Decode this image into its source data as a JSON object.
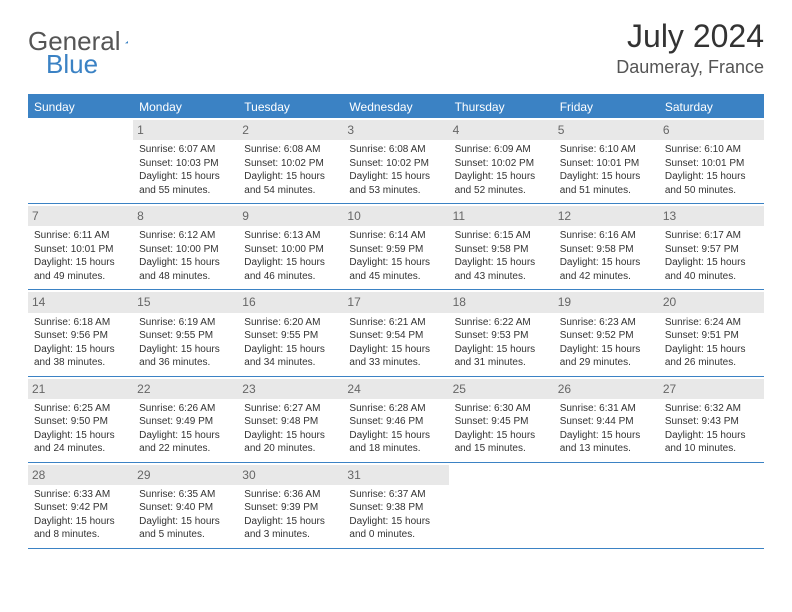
{
  "logo": {
    "word1": "General",
    "word2": "Blue"
  },
  "title": "July 2024",
  "location": "Daumeray, France",
  "accent_color": "#3b82c4",
  "daynum_bg": "#e8e8e8",
  "days_of_week": [
    "Sunday",
    "Monday",
    "Tuesday",
    "Wednesday",
    "Thursday",
    "Friday",
    "Saturday"
  ],
  "weeks": [
    [
      {
        "n": "",
        "sr": "",
        "ss": "",
        "dl": ""
      },
      {
        "n": "1",
        "sr": "Sunrise: 6:07 AM",
        "ss": "Sunset: 10:03 PM",
        "dl": "Daylight: 15 hours and 55 minutes."
      },
      {
        "n": "2",
        "sr": "Sunrise: 6:08 AM",
        "ss": "Sunset: 10:02 PM",
        "dl": "Daylight: 15 hours and 54 minutes."
      },
      {
        "n": "3",
        "sr": "Sunrise: 6:08 AM",
        "ss": "Sunset: 10:02 PM",
        "dl": "Daylight: 15 hours and 53 minutes."
      },
      {
        "n": "4",
        "sr": "Sunrise: 6:09 AM",
        "ss": "Sunset: 10:02 PM",
        "dl": "Daylight: 15 hours and 52 minutes."
      },
      {
        "n": "5",
        "sr": "Sunrise: 6:10 AM",
        "ss": "Sunset: 10:01 PM",
        "dl": "Daylight: 15 hours and 51 minutes."
      },
      {
        "n": "6",
        "sr": "Sunrise: 6:10 AM",
        "ss": "Sunset: 10:01 PM",
        "dl": "Daylight: 15 hours and 50 minutes."
      }
    ],
    [
      {
        "n": "7",
        "sr": "Sunrise: 6:11 AM",
        "ss": "Sunset: 10:01 PM",
        "dl": "Daylight: 15 hours and 49 minutes."
      },
      {
        "n": "8",
        "sr": "Sunrise: 6:12 AM",
        "ss": "Sunset: 10:00 PM",
        "dl": "Daylight: 15 hours and 48 minutes."
      },
      {
        "n": "9",
        "sr": "Sunrise: 6:13 AM",
        "ss": "Sunset: 10:00 PM",
        "dl": "Daylight: 15 hours and 46 minutes."
      },
      {
        "n": "10",
        "sr": "Sunrise: 6:14 AM",
        "ss": "Sunset: 9:59 PM",
        "dl": "Daylight: 15 hours and 45 minutes."
      },
      {
        "n": "11",
        "sr": "Sunrise: 6:15 AM",
        "ss": "Sunset: 9:58 PM",
        "dl": "Daylight: 15 hours and 43 minutes."
      },
      {
        "n": "12",
        "sr": "Sunrise: 6:16 AM",
        "ss": "Sunset: 9:58 PM",
        "dl": "Daylight: 15 hours and 42 minutes."
      },
      {
        "n": "13",
        "sr": "Sunrise: 6:17 AM",
        "ss": "Sunset: 9:57 PM",
        "dl": "Daylight: 15 hours and 40 minutes."
      }
    ],
    [
      {
        "n": "14",
        "sr": "Sunrise: 6:18 AM",
        "ss": "Sunset: 9:56 PM",
        "dl": "Daylight: 15 hours and 38 minutes."
      },
      {
        "n": "15",
        "sr": "Sunrise: 6:19 AM",
        "ss": "Sunset: 9:55 PM",
        "dl": "Daylight: 15 hours and 36 minutes."
      },
      {
        "n": "16",
        "sr": "Sunrise: 6:20 AM",
        "ss": "Sunset: 9:55 PM",
        "dl": "Daylight: 15 hours and 34 minutes."
      },
      {
        "n": "17",
        "sr": "Sunrise: 6:21 AM",
        "ss": "Sunset: 9:54 PM",
        "dl": "Daylight: 15 hours and 33 minutes."
      },
      {
        "n": "18",
        "sr": "Sunrise: 6:22 AM",
        "ss": "Sunset: 9:53 PM",
        "dl": "Daylight: 15 hours and 31 minutes."
      },
      {
        "n": "19",
        "sr": "Sunrise: 6:23 AM",
        "ss": "Sunset: 9:52 PM",
        "dl": "Daylight: 15 hours and 29 minutes."
      },
      {
        "n": "20",
        "sr": "Sunrise: 6:24 AM",
        "ss": "Sunset: 9:51 PM",
        "dl": "Daylight: 15 hours and 26 minutes."
      }
    ],
    [
      {
        "n": "21",
        "sr": "Sunrise: 6:25 AM",
        "ss": "Sunset: 9:50 PM",
        "dl": "Daylight: 15 hours and 24 minutes."
      },
      {
        "n": "22",
        "sr": "Sunrise: 6:26 AM",
        "ss": "Sunset: 9:49 PM",
        "dl": "Daylight: 15 hours and 22 minutes."
      },
      {
        "n": "23",
        "sr": "Sunrise: 6:27 AM",
        "ss": "Sunset: 9:48 PM",
        "dl": "Daylight: 15 hours and 20 minutes."
      },
      {
        "n": "24",
        "sr": "Sunrise: 6:28 AM",
        "ss": "Sunset: 9:46 PM",
        "dl": "Daylight: 15 hours and 18 minutes."
      },
      {
        "n": "25",
        "sr": "Sunrise: 6:30 AM",
        "ss": "Sunset: 9:45 PM",
        "dl": "Daylight: 15 hours and 15 minutes."
      },
      {
        "n": "26",
        "sr": "Sunrise: 6:31 AM",
        "ss": "Sunset: 9:44 PM",
        "dl": "Daylight: 15 hours and 13 minutes."
      },
      {
        "n": "27",
        "sr": "Sunrise: 6:32 AM",
        "ss": "Sunset: 9:43 PM",
        "dl": "Daylight: 15 hours and 10 minutes."
      }
    ],
    [
      {
        "n": "28",
        "sr": "Sunrise: 6:33 AM",
        "ss": "Sunset: 9:42 PM",
        "dl": "Daylight: 15 hours and 8 minutes."
      },
      {
        "n": "29",
        "sr": "Sunrise: 6:35 AM",
        "ss": "Sunset: 9:40 PM",
        "dl": "Daylight: 15 hours and 5 minutes."
      },
      {
        "n": "30",
        "sr": "Sunrise: 6:36 AM",
        "ss": "Sunset: 9:39 PM",
        "dl": "Daylight: 15 hours and 3 minutes."
      },
      {
        "n": "31",
        "sr": "Sunrise: 6:37 AM",
        "ss": "Sunset: 9:38 PM",
        "dl": "Daylight: 15 hours and 0 minutes."
      },
      {
        "n": "",
        "sr": "",
        "ss": "",
        "dl": ""
      },
      {
        "n": "",
        "sr": "",
        "ss": "",
        "dl": ""
      },
      {
        "n": "",
        "sr": "",
        "ss": "",
        "dl": ""
      }
    ]
  ]
}
